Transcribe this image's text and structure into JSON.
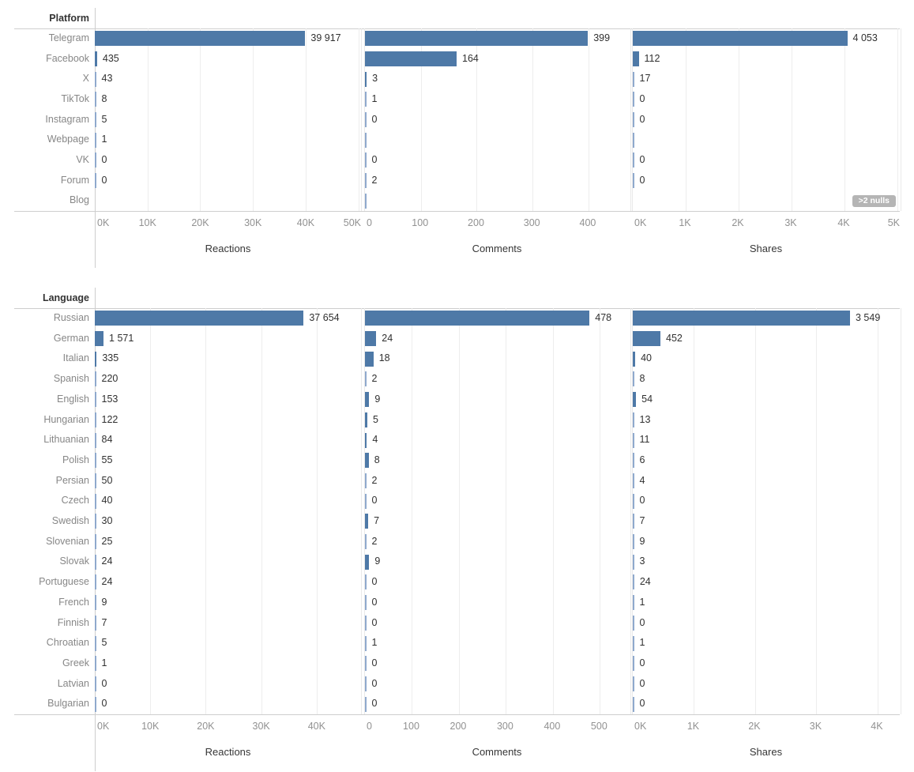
{
  "ui": {
    "colors": {
      "bar": "#4e79a7",
      "zero_tick": "#8fa9cd",
      "badge_bg": "#b5b5b5",
      "row_label": "#878787",
      "value_label": "#303030"
    },
    "nulls_badge_label": ">2 nulls"
  },
  "chart_data": [
    {
      "type": "bar",
      "orientation": "horizontal",
      "group_title": "Platform",
      "categories": [
        "Telegram",
        "Facebook",
        "X",
        "TikTok",
        "Instagram",
        "Webpage",
        "VK",
        "Forum",
        "Blog"
      ],
      "series": [
        {
          "name": "Reactions",
          "values": [
            39917,
            435,
            43,
            8,
            5,
            1,
            0,
            0,
            null
          ],
          "value_labels": [
            "39 917",
            "435",
            "43",
            "8",
            "5",
            "1",
            "0",
            "0",
            ""
          ],
          "axis": {
            "tick_labels": [
              "0K",
              "10K",
              "20K",
              "30K",
              "40K",
              "50K"
            ],
            "tick_values": [
              0,
              10000,
              20000,
              30000,
              40000,
              50000
            ],
            "max": 50500
          }
        },
        {
          "name": "Comments",
          "values": [
            399,
            164,
            3,
            1,
            0,
            0,
            0,
            2,
            0
          ],
          "value_labels": [
            "399",
            "164",
            "3",
            "1",
            "0",
            "",
            "0",
            "2",
            ""
          ],
          "axis": {
            "tick_labels": [
              "0",
              "100",
              "200",
              "300",
              "400"
            ],
            "tick_values": [
              0,
              100,
              200,
              300,
              400
            ],
            "max": 475
          }
        },
        {
          "name": "Shares",
          "values": [
            4053,
            112,
            17,
            0,
            0,
            0,
            0,
            0,
            null
          ],
          "value_labels": [
            "4 053",
            "112",
            "17",
            "0",
            "0",
            "",
            "0",
            "0",
            ""
          ],
          "axis": {
            "tick_labels": [
              "0K",
              "1K",
              "2K",
              "3K",
              "4K",
              "5K"
            ],
            "tick_values": [
              0,
              1000,
              2000,
              3000,
              4000,
              5000
            ],
            "max": 5060
          }
        }
      ],
      "nulls_indicator": {
        "series": "Shares",
        "category": "Blog",
        "label": ">2 nulls"
      }
    },
    {
      "type": "bar",
      "orientation": "horizontal",
      "group_title": "Language",
      "categories": [
        "Russian",
        "German",
        "Italian",
        "Spanish",
        "English",
        "Hungarian",
        "Lithuanian",
        "Polish",
        "Persian",
        "Czech",
        "Swedish",
        "Slovenian",
        "Slovak",
        "Portuguese",
        "French",
        "Finnish",
        "Chroatian",
        "Greek",
        "Latvian",
        "Bulgarian"
      ],
      "series": [
        {
          "name": "Reactions",
          "values": [
            37654,
            1571,
            335,
            220,
            153,
            122,
            84,
            55,
            50,
            40,
            30,
            25,
            24,
            24,
            9,
            7,
            5,
            1,
            0,
            0
          ],
          "value_labels": [
            "37 654",
            "1 571",
            "335",
            "220",
            "153",
            "122",
            "84",
            "55",
            "50",
            "40",
            "30",
            "25",
            "24",
            "24",
            "9",
            "7",
            "5",
            "1",
            "0",
            "0"
          ],
          "axis": {
            "tick_labels": [
              "0K",
              "10K",
              "20K",
              "30K",
              "40K"
            ],
            "tick_values": [
              0,
              10000,
              20000,
              30000,
              40000
            ],
            "max": 48000
          }
        },
        {
          "name": "Comments",
          "values": [
            478,
            24,
            18,
            2,
            9,
            5,
            4,
            8,
            2,
            0,
            7,
            2,
            9,
            0,
            0,
            0,
            1,
            0,
            0,
            0
          ],
          "value_labels": [
            "478",
            "24",
            "18",
            "2",
            "9",
            "5",
            "4",
            "8",
            "2",
            "0",
            "7",
            "2",
            "9",
            "0",
            "0",
            "0",
            "1",
            "0",
            "0",
            "0"
          ],
          "axis": {
            "tick_labels": [
              "0",
              "100",
              "200",
              "300",
              "400",
              "500"
            ],
            "tick_values": [
              0,
              100,
              200,
              300,
              400,
              500
            ],
            "max": 565
          }
        },
        {
          "name": "Shares",
          "values": [
            3549,
            452,
            40,
            8,
            54,
            13,
            11,
            6,
            4,
            0,
            7,
            9,
            3,
            24,
            1,
            0,
            1,
            0,
            0,
            0
          ],
          "value_labels": [
            "3 549",
            "452",
            "40",
            "8",
            "54",
            "13",
            "11",
            "6",
            "4",
            "0",
            "7",
            "9",
            "3",
            "24",
            "1",
            "0",
            "1",
            "0",
            "0",
            "0"
          ],
          "axis": {
            "tick_labels": [
              "0K",
              "1K",
              "2K",
              "3K",
              "4K"
            ],
            "tick_values": [
              0,
              1000,
              2000,
              3000,
              4000
            ],
            "max": 4375
          }
        }
      ]
    }
  ]
}
